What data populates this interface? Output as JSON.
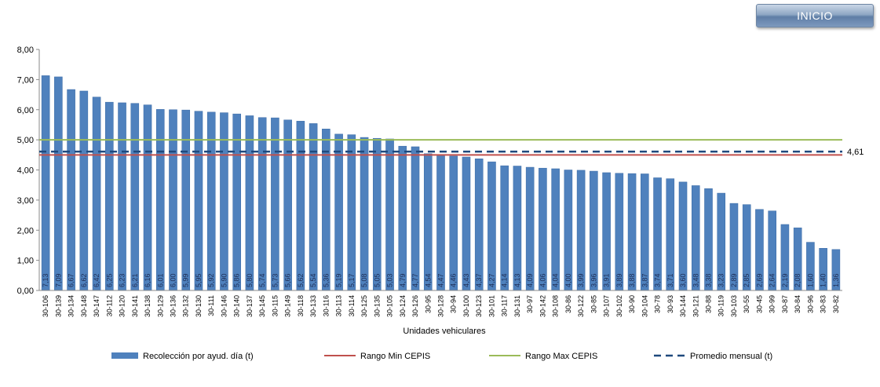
{
  "header": {
    "inicio_label": "INICIO"
  },
  "colors": {
    "bar": "#4f81bd",
    "min": "#c0504d",
    "max": "#9bbb59",
    "avg": "#1f497d"
  },
  "chart_data": {
    "type": "bar",
    "xlabel": "Unidades vehiculares",
    "ylabel": "",
    "ylim": [
      0,
      8
    ],
    "ytick_labels": [
      "0,00",
      "1,00",
      "2,00",
      "3,00",
      "4,00",
      "5,00",
      "6,00",
      "7,00",
      "8,00"
    ],
    "grid": false,
    "legend_position": "bottom",
    "categories": [
      "30-106",
      "30-139",
      "30-134",
      "30-148",
      "30-147",
      "30-112",
      "30-120",
      "30-141",
      "30-138",
      "30-129",
      "30-136",
      "30-132",
      "30-130",
      "30-111",
      "30-146",
      "30-140",
      "30-137",
      "30-145",
      "30-115",
      "30-149",
      "30-118",
      "30-133",
      "30-116",
      "30-113",
      "30-114",
      "30-125",
      "30-135",
      "30-105",
      "30-124",
      "30-126",
      "30-95",
      "30-128",
      "30-94",
      "30-100",
      "30-123",
      "30-101",
      "30-117",
      "30-131",
      "30-97",
      "30-142",
      "30-108",
      "30-86",
      "30-122",
      "30-85",
      "30-107",
      "30-102",
      "30-90",
      "30-104",
      "30-78",
      "30-93",
      "30-144",
      "30-121",
      "30-88",
      "30-119",
      "30-103",
      "30-55",
      "30-45",
      "30-99",
      "30-87",
      "30-84",
      "30-96",
      "30-83",
      "30-82"
    ],
    "series": [
      {
        "name": "Recolección por ayud. día (t)",
        "type": "bar",
        "values": [
          7.13,
          7.09,
          6.67,
          6.62,
          6.42,
          6.25,
          6.23,
          6.21,
          6.16,
          6.01,
          6.0,
          5.99,
          5.95,
          5.92,
          5.9,
          5.86,
          5.8,
          5.74,
          5.73,
          5.66,
          5.62,
          5.54,
          5.36,
          5.19,
          5.17,
          5.08,
          5.05,
          5.03,
          4.79,
          4.77,
          4.54,
          4.47,
          4.46,
          4.43,
          4.37,
          4.27,
          4.14,
          4.13,
          4.09,
          4.06,
          4.04,
          4.0,
          3.99,
          3.96,
          3.91,
          3.89,
          3.88,
          3.87,
          3.74,
          3.71,
          3.6,
          3.48,
          3.38,
          3.23,
          2.89,
          2.85,
          2.69,
          2.64,
          2.19,
          2.08,
          1.6,
          1.4,
          1.36
        ],
        "value_labels": [
          "7,13",
          "7,09",
          "6,67",
          "6,62",
          "6,42",
          "6,25",
          "6,23",
          "6,21",
          "6,16",
          "6,01",
          "6,00",
          "5,99",
          "5,95",
          "5,92",
          "5,90",
          "5,86",
          "5,80",
          "5,74",
          "5,73",
          "5,66",
          "5,62",
          "5,54",
          "5,36",
          "5,19",
          "5,17",
          "5,08",
          "5,05",
          "5,03",
          "4,79",
          "4,77",
          "4,54",
          "4,47",
          "4,46",
          "4,43",
          "4,37",
          "4,27",
          "4,14",
          "4,13",
          "4,09",
          "4,06",
          "4,04",
          "4,00",
          "3,99",
          "3,96",
          "3,91",
          "3,89",
          "3,88",
          "3,87",
          "3,74",
          "3,71",
          "3,60",
          "3,48",
          "3,38",
          "3,23",
          "2,89",
          "2,85",
          "2,69",
          "2,64",
          "2,19",
          "2,08",
          "1,60",
          "1,40",
          "1,36"
        ]
      },
      {
        "name": "Rango Min CEPIS",
        "type": "line",
        "value": 4.5
      },
      {
        "name": "Rango Max CEPIS",
        "type": "line",
        "value": 5.0
      },
      {
        "name": "Promedio mensual (t)",
        "type": "line-dashed",
        "value": 4.61,
        "label": "4,61"
      }
    ]
  }
}
